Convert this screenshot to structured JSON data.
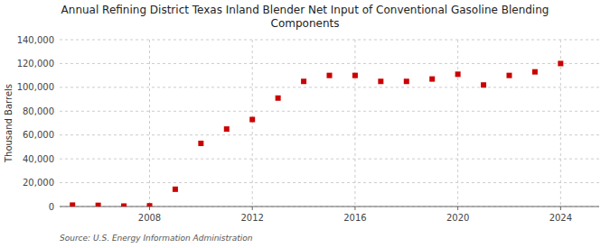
{
  "chart_data": {
    "type": "scatter",
    "title": "Annual Refining District Texas Inland Blender Net Input of Conventional Gasoline Blending\nComponents",
    "ylabel": "Thousand Barrels",
    "source": "Source: U.S. Energy Information Administration",
    "x": [
      2005,
      2006,
      2007,
      2008,
      2009,
      2010,
      2011,
      2012,
      2013,
      2014,
      2015,
      2016,
      2017,
      2018,
      2019,
      2020,
      2021,
      2022,
      2023,
      2024
    ],
    "values": [
      1200,
      1000,
      400,
      600,
      14500,
      53000,
      65000,
      73000,
      91000,
      105000,
      110000,
      110000,
      105000,
      105000,
      107000,
      111000,
      102000,
      110000,
      113000,
      120000
    ],
    "color": "#cc0000",
    "marker": "square",
    "xlim": [
      2004.5,
      2025.5
    ],
    "ylim": [
      0,
      140000
    ],
    "xticks": [
      2008,
      2012,
      2016,
      2020,
      2024
    ],
    "yticks": [
      0,
      {
        "value": 20000,
        "label": "20,000"
      },
      {
        "value": 40000,
        "label": "40,000"
      },
      {
        "value": 60000,
        "label": "60,000"
      },
      {
        "value": 80000,
        "label": "80,000"
      },
      {
        "value": 100000,
        "label": "100,000"
      },
      {
        "value": 120000,
        "label": "120,000"
      },
      {
        "value": 140000,
        "label": "140,000"
      }
    ],
    "grid": true
  }
}
